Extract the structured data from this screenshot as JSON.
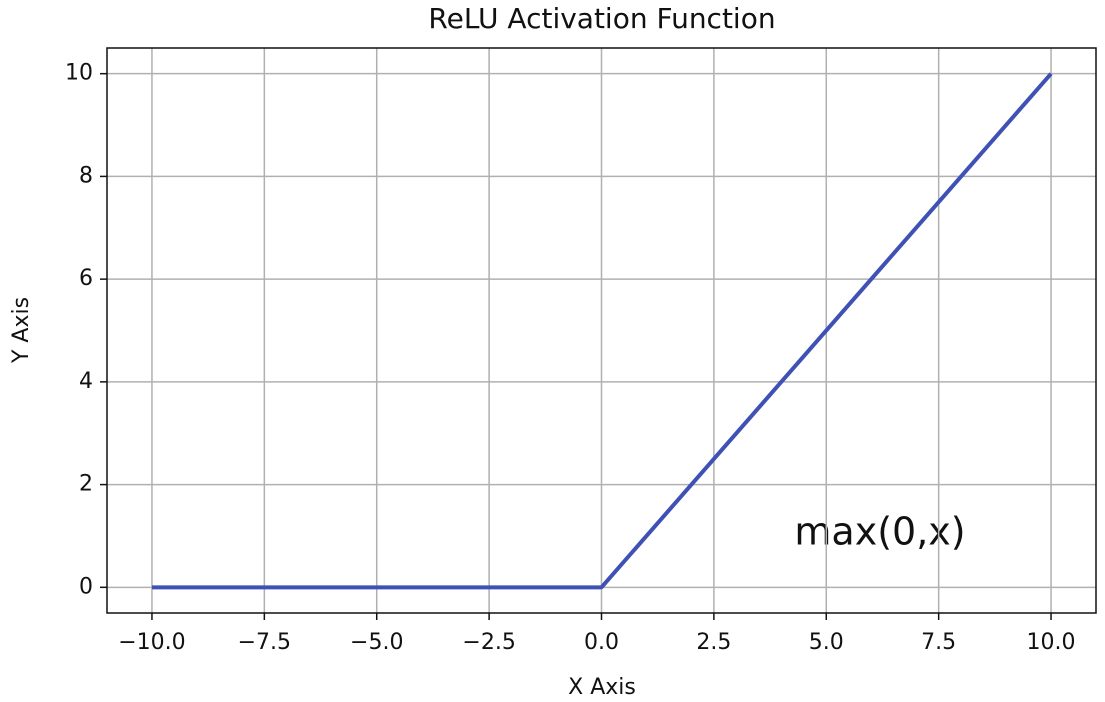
{
  "chart_data": {
    "type": "line",
    "title": "ReLU Activation Function",
    "x_label": "X Axis",
    "y_label": "Y Axis",
    "annotation": "max(0,x)",
    "x": [
      -10,
      0,
      10
    ],
    "series": [
      {
        "name": "ReLU",
        "color": "#3f51b5",
        "values": [
          0,
          0,
          10
        ]
      }
    ],
    "xlim": [
      -11,
      11
    ],
    "ylim": [
      -0.5,
      10.5
    ],
    "xticks": [
      {
        "value": -10,
        "label": "−10.0"
      },
      {
        "value": -7.5,
        "label": "−7.5"
      },
      {
        "value": -5,
        "label": "−5.0"
      },
      {
        "value": -2.5,
        "label": "−2.5"
      },
      {
        "value": 0,
        "label": "0.0"
      },
      {
        "value": 2.5,
        "label": "2.5"
      },
      {
        "value": 5,
        "label": "5.0"
      },
      {
        "value": 7.5,
        "label": "7.5"
      },
      {
        "value": 10,
        "label": "10.0"
      }
    ],
    "yticks": [
      0,
      2,
      4,
      6,
      8,
      10
    ],
    "grid": true
  }
}
